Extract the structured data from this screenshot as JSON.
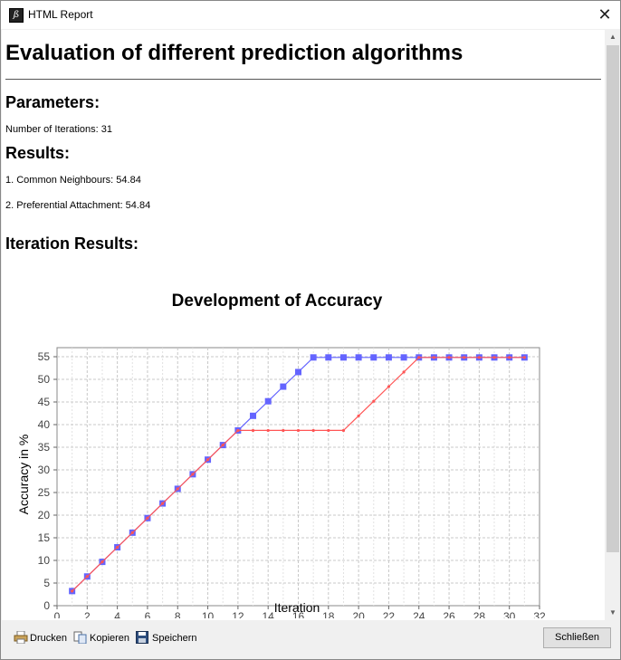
{
  "window": {
    "title": "HTML Report",
    "app_icon": "report-app-icon",
    "close_icon": "close-icon"
  },
  "report": {
    "heading": "Evaluation of different prediction algorithms",
    "parameters_heading": "Parameters:",
    "iterations_line": "Number of Iterations: 31",
    "results_heading": "Results:",
    "results": [
      "1. Common Neighbours: 54.84",
      "2. Preferential Attachment: 54.84"
    ],
    "iteration_results_heading": "Iteration Results:"
  },
  "chart_data": {
    "type": "line",
    "title": "Development of Accuracy",
    "xlabel": "Iteration",
    "ylabel": "Accuracy in %",
    "xlim": [
      0,
      32
    ],
    "ylim": [
      0,
      57
    ],
    "xticks": [
      0,
      2,
      4,
      6,
      8,
      10,
      12,
      14,
      16,
      18,
      20,
      22,
      24,
      26,
      28,
      30,
      32
    ],
    "yticks": [
      0,
      5,
      10,
      15,
      20,
      25,
      30,
      35,
      40,
      45,
      50,
      55
    ],
    "grid": true,
    "x": [
      1,
      2,
      3,
      4,
      5,
      6,
      7,
      8,
      9,
      10,
      11,
      12,
      13,
      14,
      15,
      16,
      17,
      18,
      19,
      20,
      21,
      22,
      23,
      24,
      25,
      26,
      27,
      28,
      29,
      30,
      31
    ],
    "series": [
      {
        "color": "#6464ff",
        "marker": "square",
        "values": [
          3.23,
          6.45,
          9.68,
          12.9,
          16.13,
          19.35,
          22.58,
          25.81,
          29.03,
          32.26,
          35.48,
          38.71,
          41.94,
          45.16,
          48.39,
          51.61,
          54.84,
          54.84,
          54.84,
          54.84,
          54.84,
          54.84,
          54.84,
          54.84,
          54.84,
          54.84,
          54.84,
          54.84,
          54.84,
          54.84,
          54.84
        ]
      },
      {
        "color": "#ff5555",
        "marker": "dot",
        "values": [
          3.23,
          6.45,
          9.68,
          12.9,
          16.13,
          19.35,
          22.58,
          25.81,
          29.03,
          32.26,
          35.48,
          38.71,
          38.71,
          38.71,
          38.71,
          38.71,
          38.71,
          38.71,
          38.71,
          41.94,
          45.16,
          48.39,
          51.61,
          54.84,
          54.84,
          54.84,
          54.84,
          54.84,
          54.84,
          54.84,
          54.84
        ]
      }
    ]
  },
  "footer": {
    "print_label": "Drucken",
    "copy_label": "Kopieren",
    "save_label": "Speichern",
    "close_label": "Schließen"
  }
}
